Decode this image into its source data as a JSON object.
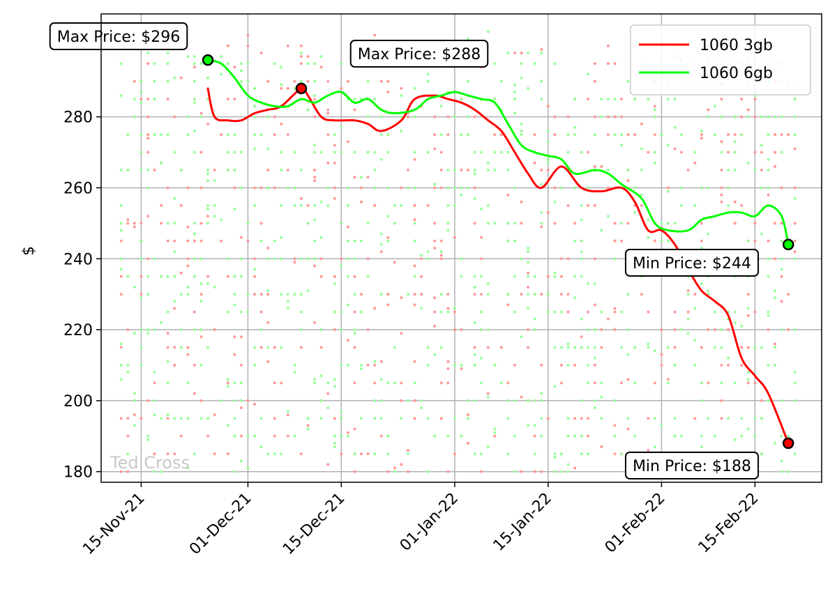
{
  "chart_data": {
    "type": "line",
    "ylabel": "$",
    "xlabel": "",
    "ylim": [
      177,
      309
    ],
    "xlim": [
      "2021-11-09",
      "2022-02-25"
    ],
    "grid": true,
    "legend_placement": "top-right",
    "watermark": "Ted Cross",
    "x_ticks": [
      {
        "date": "2021-11-15",
        "label": "15-Nov-21"
      },
      {
        "date": "2021-12-01",
        "label": "01-Dec-21"
      },
      {
        "date": "2021-12-15",
        "label": "15-Dec-21"
      },
      {
        "date": "2022-01-01",
        "label": "01-Jan-22"
      },
      {
        "date": "2022-01-15",
        "label": "15-Jan-22"
      },
      {
        "date": "2022-02-01",
        "label": "01-Feb-22"
      },
      {
        "date": "2022-02-15",
        "label": "15-Feb-22"
      }
    ],
    "y_ticks": [
      180,
      200,
      220,
      240,
      260,
      280
    ],
    "series": [
      {
        "name": "1060 3gb",
        "color": "#ff0000",
        "scatter_color": "#ff9999",
        "points": [
          [
            "2021-11-25",
            288
          ],
          [
            "2021-11-26",
            280
          ],
          [
            "2021-11-28",
            279
          ],
          [
            "2021-11-30",
            279
          ],
          [
            "2021-12-02",
            281
          ],
          [
            "2021-12-04",
            282
          ],
          [
            "2021-12-06",
            283
          ],
          [
            "2021-12-09",
            288
          ],
          [
            "2021-12-10",
            286
          ],
          [
            "2021-12-12",
            280
          ],
          [
            "2021-12-14",
            279
          ],
          [
            "2021-12-17",
            279
          ],
          [
            "2021-12-19",
            278
          ],
          [
            "2021-12-21",
            276
          ],
          [
            "2021-12-24",
            279
          ],
          [
            "2021-12-26",
            285
          ],
          [
            "2021-12-29",
            286
          ],
          [
            "2021-12-31",
            285
          ],
          [
            "2022-01-02",
            284
          ],
          [
            "2022-01-04",
            282
          ],
          [
            "2022-01-06",
            279
          ],
          [
            "2022-01-08",
            276
          ],
          [
            "2022-01-10",
            270
          ],
          [
            "2022-01-12",
            264
          ],
          [
            "2022-01-14",
            260
          ],
          [
            "2022-01-17",
            266
          ],
          [
            "2022-01-20",
            260
          ],
          [
            "2022-01-23",
            259
          ],
          [
            "2022-01-26",
            260
          ],
          [
            "2022-01-28",
            256
          ],
          [
            "2022-01-30",
            248
          ],
          [
            "2022-02-01",
            248
          ],
          [
            "2022-02-03",
            244
          ],
          [
            "2022-02-05",
            237
          ],
          [
            "2022-02-07",
            231
          ],
          [
            "2022-02-09",
            228
          ],
          [
            "2022-02-11",
            224
          ],
          [
            "2022-02-13",
            212
          ],
          [
            "2022-02-15",
            207
          ],
          [
            "2022-02-17",
            202
          ],
          [
            "2022-02-20",
            188
          ]
        ],
        "max_label": "Max Price: $288",
        "min_label": "Min Price: $188",
        "max_point": [
          "2021-12-09",
          288
        ],
        "min_point": [
          "2022-02-20",
          188
        ]
      },
      {
        "name": "1060 6gb",
        "color": "#00ff00",
        "scatter_color": "#99ff99",
        "points": [
          [
            "2021-11-25",
            296
          ],
          [
            "2021-11-27",
            295
          ],
          [
            "2021-11-29",
            291
          ],
          [
            "2021-12-01",
            286
          ],
          [
            "2021-12-03",
            284
          ],
          [
            "2021-12-05",
            283
          ],
          [
            "2021-12-07",
            283
          ],
          [
            "2021-12-09",
            285
          ],
          [
            "2021-12-11",
            284
          ],
          [
            "2021-12-13",
            286
          ],
          [
            "2021-12-15",
            287
          ],
          [
            "2021-12-17",
            284
          ],
          [
            "2021-12-19",
            285
          ],
          [
            "2021-12-21",
            282
          ],
          [
            "2021-12-23",
            281
          ],
          [
            "2021-12-26",
            282
          ],
          [
            "2021-12-28",
            285
          ],
          [
            "2021-12-30",
            286
          ],
          [
            "2022-01-01",
            287
          ],
          [
            "2022-01-03",
            286
          ],
          [
            "2022-01-05",
            285
          ],
          [
            "2022-01-07",
            284
          ],
          [
            "2022-01-09",
            278
          ],
          [
            "2022-01-11",
            272
          ],
          [
            "2022-01-13",
            270
          ],
          [
            "2022-01-15",
            269
          ],
          [
            "2022-01-17",
            268
          ],
          [
            "2022-01-19",
            264
          ],
          [
            "2022-01-22",
            265
          ],
          [
            "2022-01-24",
            264
          ],
          [
            "2022-01-26",
            261
          ],
          [
            "2022-01-29",
            257
          ],
          [
            "2022-01-31",
            250
          ],
          [
            "2022-02-02",
            248
          ],
          [
            "2022-02-05",
            248
          ],
          [
            "2022-02-07",
            251
          ],
          [
            "2022-02-09",
            252
          ],
          [
            "2022-02-11",
            253
          ],
          [
            "2022-02-13",
            253
          ],
          [
            "2022-02-15",
            252
          ],
          [
            "2022-02-17",
            255
          ],
          [
            "2022-02-19",
            252
          ],
          [
            "2022-02-20",
            244
          ]
        ],
        "max_label": "Max Price: $296",
        "min_label": "Min Price: $244",
        "max_point": [
          "2021-11-25",
          296
        ],
        "min_point": [
          "2022-02-20",
          244
        ]
      }
    ],
    "annotations": [
      {
        "text": "Max Price: $296"
      },
      {
        "text": "Max Price: $288"
      },
      {
        "text": "Min Price: $244"
      },
      {
        "text": "Min Price: $188"
      }
    ]
  }
}
